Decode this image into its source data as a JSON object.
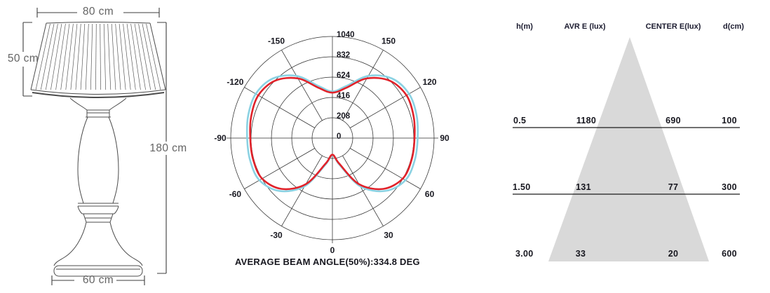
{
  "lamp": {
    "top_width": "80 cm",
    "shade_height": "50 cm",
    "total_height": "180 cm",
    "base_width": "60 cm"
  },
  "chart_data": [
    {
      "type": "line",
      "subtype": "polar-photometric",
      "caption": "AVERAGE BEAM ANGLE(50%):334.8 DEG",
      "rmax": 1040,
      "radial_ticks": [
        0,
        208,
        416,
        624,
        832,
        1040
      ],
      "angle_ticks": [
        -150,
        -120,
        -90,
        -60,
        -30,
        0,
        30,
        60,
        90,
        120,
        150
      ],
      "grid_color": "#2e2e2e",
      "series": [
        {
          "name": "cyan-curve",
          "color": "#8bd2e3",
          "points": [
            [
              -180,
              478
            ],
            [
              -165,
              552
            ],
            [
              -150,
              735
            ],
            [
              -135,
              862
            ],
            [
              -120,
              905
            ],
            [
              -105,
              892
            ],
            [
              -90,
              872
            ],
            [
              -75,
              872
            ],
            [
              -60,
              862
            ],
            [
              -45,
              765
            ],
            [
              -30,
              570
            ],
            [
              -15,
              283
            ],
            [
              0,
              175
            ],
            [
              15,
              283
            ],
            [
              30,
              570
            ],
            [
              45,
              765
            ],
            [
              60,
              862
            ],
            [
              75,
              872
            ],
            [
              90,
              872
            ],
            [
              105,
              892
            ],
            [
              120,
              905
            ],
            [
              135,
              862
            ],
            [
              150,
              735
            ],
            [
              165,
              552
            ],
            [
              180,
              478
            ]
          ]
        },
        {
          "name": "red-curve",
          "color": "#e1222a",
          "points": [
            [
              -180,
              465
            ],
            [
              -165,
              530
            ],
            [
              -150,
              705
            ],
            [
              -135,
              830
            ],
            [
              -120,
              875
            ],
            [
              -105,
              860
            ],
            [
              -90,
              840
            ],
            [
              -75,
              840
            ],
            [
              -60,
              830
            ],
            [
              -45,
              735
            ],
            [
              -30,
              545
            ],
            [
              -15,
              270
            ],
            [
              0,
              170
            ],
            [
              15,
              270
            ],
            [
              30,
              545
            ],
            [
              45,
              735
            ],
            [
              60,
              830
            ],
            [
              75,
              840
            ],
            [
              90,
              840
            ],
            [
              105,
              860
            ],
            [
              120,
              875
            ],
            [
              135,
              830
            ],
            [
              150,
              705
            ],
            [
              165,
              530
            ],
            [
              180,
              465
            ]
          ]
        }
      ]
    },
    {
      "type": "table",
      "name": "illuminance-cone",
      "headers": [
        "h(m)",
        "AVR E (lux)",
        "CENTER E(lux)",
        "d(cm)"
      ],
      "rows": [
        [
          "0.5",
          "1180",
          "690",
          "100"
        ],
        [
          "1.50",
          "131",
          "77",
          "300"
        ],
        [
          "3.00",
          "33",
          "20",
          "600"
        ]
      ],
      "cone_color": "#d9d9d9"
    }
  ]
}
